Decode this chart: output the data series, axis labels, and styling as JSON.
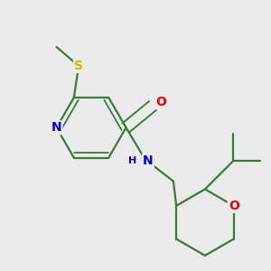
{
  "background_color": "#ebebeb",
  "bond_color": "#3a7a3a",
  "atom_colors": {
    "N": "#0000ee",
    "O": "#ee0000",
    "S": "#ccbb00",
    "C": "#3a7a3a"
  },
  "bond_width": 1.6,
  "font_size": 9,
  "figsize": [
    3.0,
    3.0
  ],
  "dpi": 100
}
